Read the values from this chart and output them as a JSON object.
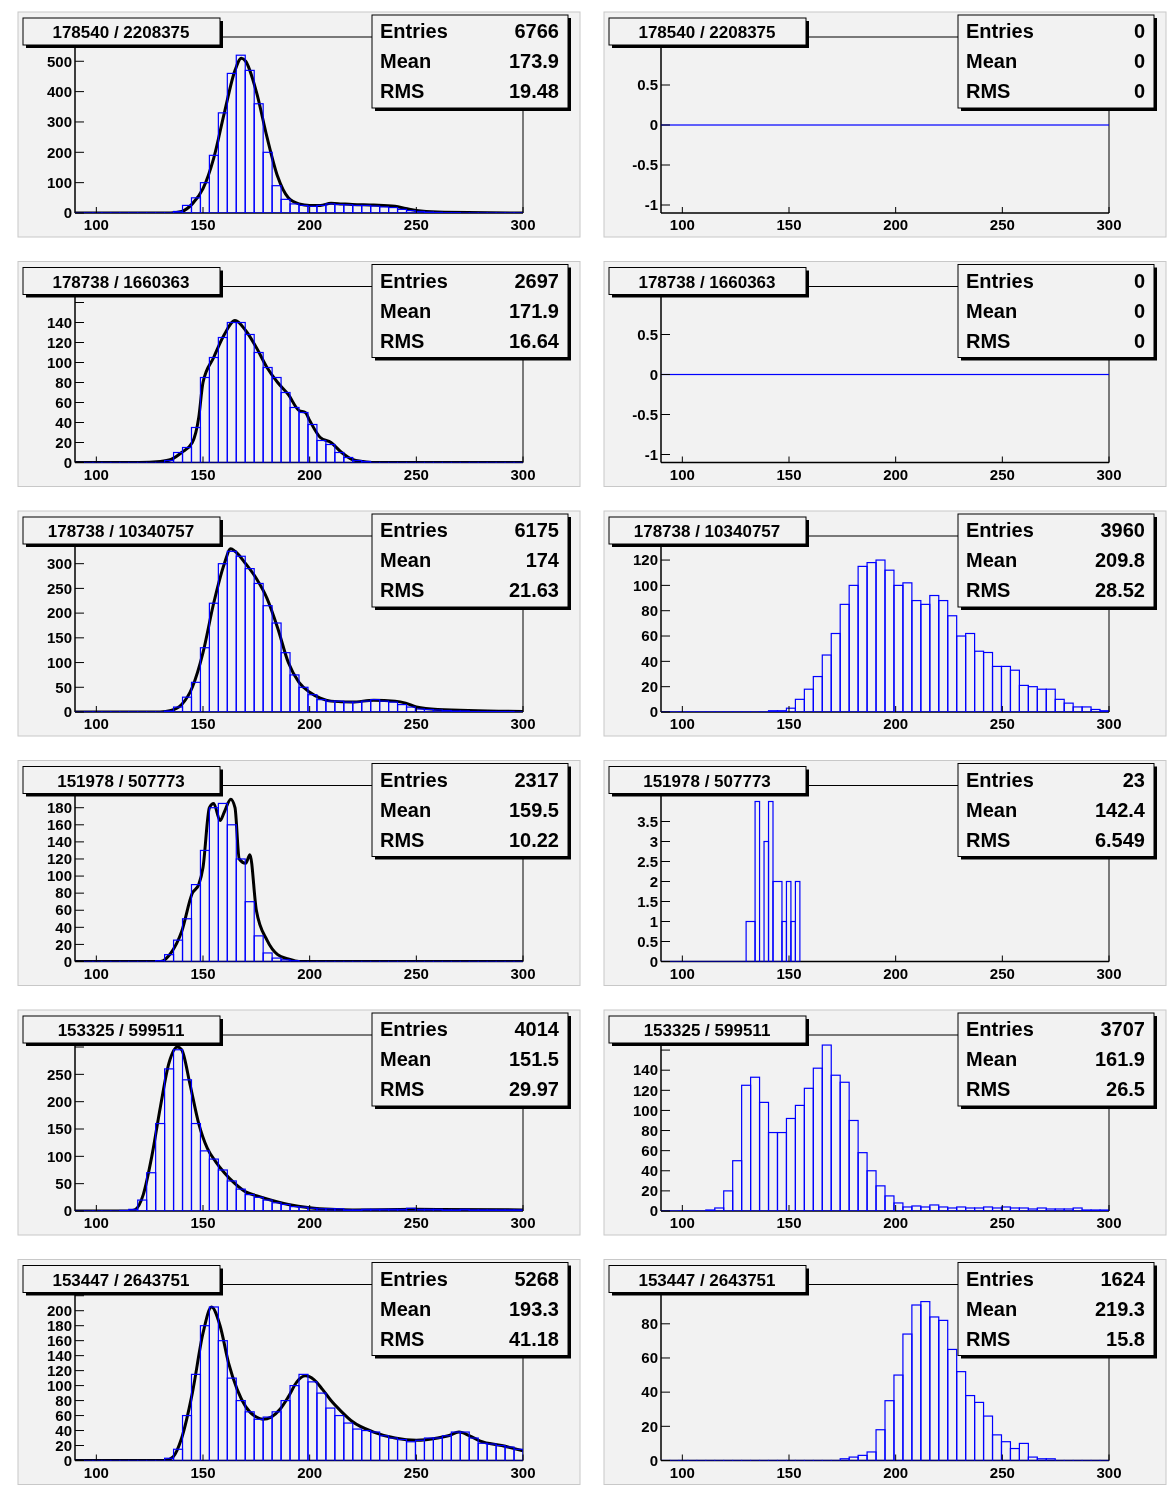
{
  "chart_data": [
    {
      "type": "histogram",
      "title": "178540 / 2208375",
      "color": "#0000ff",
      "xlim": [
        90,
        300
      ],
      "xticks": [
        100,
        150,
        200,
        250,
        300
      ],
      "ylim": [
        0,
        580
      ],
      "yticks": [
        0,
        100,
        200,
        300,
        400,
        500
      ],
      "annotations": [
        "Entries",
        "6766",
        "Mean",
        "173.9",
        "RMS",
        "19.48"
      ],
      "bins": [
        90,
        94.2,
        98.4,
        102.6,
        106.8,
        111,
        115.2,
        119.4,
        123.6,
        127.8,
        132,
        136.2,
        140.4,
        144.6,
        148.8,
        153,
        157.2,
        161.4,
        165.6,
        169.8,
        174,
        178.2,
        182.4,
        186.6,
        190.8,
        195,
        199.2,
        203.4,
        207.6,
        211.8,
        216,
        220.2,
        224.4,
        228.6,
        232.8,
        237,
        241.2,
        245.4,
        249.6,
        253.8,
        258,
        262.2,
        266.4,
        270.6,
        274.8,
        279,
        283.2,
        287.4,
        291.6,
        295.8,
        300
      ],
      "values": [
        0,
        0,
        0,
        0,
        0,
        0,
        0,
        0,
        0,
        0,
        0,
        5,
        25,
        50,
        100,
        190,
        330,
        460,
        520,
        470,
        360,
        200,
        90,
        45,
        30,
        25,
        22,
        25,
        30,
        28,
        27,
        25,
        25,
        23,
        20,
        18,
        12,
        8,
        5,
        3,
        2,
        1,
        1,
        0,
        0,
        0,
        0,
        0,
        0,
        0
      ],
      "series": [
        {
          "type": "line",
          "color": "#000000",
          "x": [
            90,
            135,
            140,
            145,
            150,
            155,
            160,
            165,
            168,
            170,
            175,
            180,
            185,
            190,
            195,
            200,
            205,
            210,
            215,
            220,
            230,
            240,
            245,
            250,
            260,
            300
          ],
          "values": [
            0,
            0,
            5,
            30,
            80,
            180,
            330,
            470,
            510,
            500,
            400,
            250,
            120,
            50,
            30,
            25,
            25,
            32,
            30,
            28,
            26,
            22,
            15,
            8,
            3,
            0
          ]
        }
      ]
    },
    {
      "type": "histogram",
      "title": "178540 / 2208375",
      "color": "#0000ff",
      "xlim": [
        90,
        300
      ],
      "xticks": [
        100,
        150,
        200,
        250,
        300
      ],
      "ylim": [
        -1.1,
        1.1
      ],
      "yticks": [
        -1,
        -0.5,
        0,
        0.5
      ],
      "annotations": [
        "Entries",
        "0",
        "Mean",
        "0",
        "RMS",
        "0"
      ],
      "bins": [
        90,
        300
      ],
      "values": [
        0
      ]
    },
    {
      "type": "histogram",
      "title": "178738 / 1660363",
      "color": "#0000ff",
      "xlim": [
        90,
        300
      ],
      "xticks": [
        100,
        150,
        200,
        250,
        300
      ],
      "ylim": [
        0,
        176
      ],
      "yticks": [
        0,
        20,
        40,
        60,
        80,
        100,
        120,
        140,
        {
          "value": 160,
          "label": null
        }
      ],
      "annotations": [
        "Entries",
        "2697",
        "Mean",
        "171.9",
        "RMS",
        "16.64"
      ],
      "bins": [
        90,
        94.2,
        98.4,
        102.6,
        106.8,
        111,
        115.2,
        119.4,
        123.6,
        127.8,
        132,
        136.2,
        140.4,
        144.6,
        148.8,
        153,
        157.2,
        161.4,
        165.6,
        169.8,
        174,
        178.2,
        182.4,
        186.6,
        190.8,
        195,
        199.2,
        203.4,
        207.6,
        211.8,
        216,
        220.2,
        224.4,
        228.6,
        232.8,
        237,
        241.2,
        245.4,
        249.6,
        253.8,
        258,
        262.2,
        266.4,
        270.6,
        274.8,
        279,
        283.2,
        287.4,
        291.6,
        295.8,
        300
      ],
      "values": [
        0,
        0,
        0,
        0,
        0,
        0,
        0,
        0,
        0,
        0,
        2,
        10,
        15,
        35,
        85,
        105,
        125,
        140,
        140,
        128,
        110,
        95,
        85,
        70,
        55,
        50,
        38,
        22,
        18,
        10,
        5,
        2,
        1,
        0,
        0,
        0,
        0,
        0,
        0,
        0,
        0,
        0,
        0,
        0,
        0,
        0,
        0,
        0,
        0,
        0
      ],
      "series": [
        {
          "type": "line",
          "color": "#000000",
          "x": [
            90,
            120,
            130,
            135,
            140,
            145,
            148,
            150,
            155,
            160,
            165,
            170,
            175,
            180,
            185,
            190,
            195,
            198,
            200,
            205,
            210,
            215,
            220,
            225,
            230,
            300
          ],
          "values": [
            0,
            0,
            1,
            3,
            10,
            20,
            45,
            80,
            105,
            128,
            142,
            132,
            115,
            95,
            80,
            68,
            52,
            50,
            42,
            25,
            20,
            10,
            3,
            1,
            0,
            0
          ]
        }
      ]
    },
    {
      "type": "histogram",
      "title": "178738 / 1660363",
      "color": "#0000ff",
      "xlim": [
        90,
        300
      ],
      "xticks": [
        100,
        150,
        200,
        250,
        300
      ],
      "ylim": [
        -1.1,
        1.1
      ],
      "yticks": [
        -1,
        -0.5,
        0,
        0.5
      ],
      "annotations": [
        "Entries",
        "0",
        "Mean",
        "0",
        "RMS",
        "0"
      ],
      "bins": [
        90,
        300
      ],
      "values": [
        0
      ]
    },
    {
      "type": "histogram",
      "title": "178738 / 10340757",
      "color": "#0000ff",
      "xlim": [
        90,
        300
      ],
      "xticks": [
        100,
        150,
        200,
        250,
        300
      ],
      "ylim": [
        0,
        356
      ],
      "yticks": [
        0,
        50,
        100,
        150,
        200,
        250,
        300
      ],
      "annotations": [
        "Entries",
        "6175",
        "Mean",
        "174",
        "RMS",
        "21.63"
      ],
      "bins": [
        90,
        94.2,
        98.4,
        102.6,
        106.8,
        111,
        115.2,
        119.4,
        123.6,
        127.8,
        132,
        136.2,
        140.4,
        144.6,
        148.8,
        153,
        157.2,
        161.4,
        165.6,
        169.8,
        174,
        178.2,
        182.4,
        186.6,
        190.8,
        195,
        199.2,
        203.4,
        207.6,
        211.8,
        216,
        220.2,
        224.4,
        228.6,
        232.8,
        237,
        241.2,
        245.4,
        249.6,
        253.8,
        258,
        262.2,
        266.4,
        270.6,
        274.8,
        279,
        283.2,
        287.4,
        291.6,
        295.8,
        300
      ],
      "values": [
        0,
        0,
        0,
        0,
        0,
        0,
        0,
        0,
        0,
        0,
        2,
        10,
        30,
        60,
        130,
        220,
        300,
        325,
        315,
        290,
        260,
        215,
        180,
        120,
        75,
        50,
        35,
        25,
        22,
        22,
        20,
        20,
        22,
        25,
        22,
        20,
        15,
        10,
        6,
        5,
        4,
        3,
        2,
        2,
        1,
        1,
        1,
        1,
        1,
        0
      ],
      "series": [
        {
          "type": "line",
          "color": "#000000",
          "x": [
            90,
            130,
            135,
            140,
            145,
            150,
            155,
            160,
            163,
            165,
            170,
            175,
            180,
            185,
            190,
            195,
            200,
            205,
            210,
            220,
            230,
            240,
            245,
            250,
            260,
            300
          ],
          "values": [
            0,
            0,
            3,
            15,
            50,
            120,
            220,
            300,
            330,
            325,
            300,
            270,
            230,
            170,
            100,
            60,
            40,
            28,
            22,
            20,
            24,
            22,
            18,
            10,
            5,
            1
          ]
        }
      ]
    },
    {
      "type": "histogram",
      "title": "178738 / 10340757",
      "color": "#0000ff",
      "xlim": [
        90,
        300
      ],
      "xticks": [
        100,
        150,
        200,
        250,
        300
      ],
      "ylim": [
        0,
        139
      ],
      "yticks": [
        0,
        20,
        40,
        60,
        80,
        100,
        120
      ],
      "annotations": [
        "Entries",
        "3960",
        "Mean",
        "209.8",
        "RMS",
        "28.52"
      ],
      "bins": [
        90,
        94.2,
        98.4,
        102.6,
        106.8,
        111,
        115.2,
        119.4,
        123.6,
        127.8,
        132,
        136.2,
        140.4,
        144.6,
        148.8,
        153,
        157.2,
        161.4,
        165.6,
        169.8,
        174,
        178.2,
        182.4,
        186.6,
        190.8,
        195,
        199.2,
        203.4,
        207.6,
        211.8,
        216,
        220.2,
        224.4,
        228.6,
        232.8,
        237,
        241.2,
        245.4,
        249.6,
        253.8,
        258,
        262.2,
        266.4,
        270.6,
        274.8,
        279,
        283.2,
        287.4,
        291.6,
        295.8,
        300
      ],
      "values": [
        0,
        0,
        0,
        0,
        0,
        0,
        0,
        0,
        0,
        0,
        0,
        0,
        1,
        1,
        3,
        10,
        18,
        28,
        45,
        62,
        85,
        100,
        115,
        118,
        120,
        112,
        100,
        102,
        88,
        85,
        92,
        88,
        76,
        60,
        62,
        48,
        47,
        36,
        36,
        33,
        21,
        20,
        18,
        18,
        10,
        7,
        4,
        4,
        2,
        1
      ]
    },
    {
      "type": "histogram",
      "title": "151978 / 507773",
      "color": "#0000ff",
      "xlim": [
        90,
        300
      ],
      "xticks": [
        100,
        150,
        200,
        250,
        300
      ],
      "ylim": [
        0,
        206
      ],
      "yticks": [
        0,
        20,
        40,
        60,
        80,
        100,
        120,
        140,
        160,
        180
      ],
      "annotations": [
        "Entries",
        "2317",
        "Mean",
        "159.5",
        "RMS",
        "10.22"
      ],
      "bins": [
        90,
        94.2,
        98.4,
        102.6,
        106.8,
        111,
        115.2,
        119.4,
        123.6,
        127.8,
        132,
        136.2,
        140.4,
        144.6,
        148.8,
        153,
        157.2,
        161.4,
        165.6,
        169.8,
        174,
        178.2,
        182.4,
        186.6,
        190.8,
        195,
        199.2,
        203.4,
        207.6,
        211.8,
        216,
        220.2,
        224.4,
        228.6,
        232.8,
        237,
        241.2,
        245.4,
        249.6,
        253.8,
        258,
        262.2,
        266.4,
        270.6,
        274.8,
        279,
        283.2,
        287.4,
        291.6,
        295.8,
        300
      ],
      "values": [
        0,
        0,
        0,
        0,
        0,
        0,
        0,
        0,
        0,
        1,
        8,
        25,
        50,
        90,
        130,
        180,
        185,
        160,
        120,
        70,
        30,
        10,
        4,
        2,
        1,
        0,
        0,
        0,
        0,
        0,
        0,
        0,
        0,
        0,
        0,
        0,
        0,
        0,
        0,
        0,
        0,
        0,
        0,
        0,
        0,
        0,
        0,
        0,
        0,
        0
      ],
      "series": [
        {
          "type": "line",
          "color": "#000000",
          "x": [
            90,
            130,
            135,
            140,
            145,
            148,
            150,
            153,
            155,
            158,
            160,
            163,
            165,
            167,
            170,
            172,
            175,
            180,
            185,
            190,
            195,
            300
          ],
          "values": [
            0,
            0,
            10,
            35,
            80,
            90,
            110,
            180,
            185,
            165,
            175,
            190,
            180,
            120,
            115,
            125,
            60,
            25,
            8,
            3,
            0,
            0
          ]
        }
      ]
    },
    {
      "type": "histogram",
      "title": "151978 / 507773",
      "color": "#0000ff",
      "xlim": [
        90,
        300
      ],
      "xticks": [
        100,
        150,
        200,
        250,
        300
      ],
      "ylim": [
        0,
        4.4
      ],
      "yticks": [
        0,
        0.5,
        1,
        1.5,
        2,
        2.5,
        3,
        3.5
      ],
      "annotations": [
        "Entries",
        "23",
        "Mean",
        "142.4",
        "RMS",
        "6.549"
      ],
      "bins": [
        90,
        129.9,
        134.1,
        136.2,
        138.3,
        140.4,
        142.5,
        146.7,
        148.8,
        150.9,
        153,
        155.1
      ],
      "values": [
        0,
        1,
        4,
        0,
        3,
        4,
        2,
        1,
        2,
        1,
        2
      ]
    },
    {
      "type": "histogram",
      "title": "153325 / 599511",
      "color": "#0000ff",
      "xlim": [
        90,
        300
      ],
      "xticks": [
        100,
        150,
        200,
        250,
        300
      ],
      "ylim": [
        0,
        322
      ],
      "yticks": [
        0,
        50,
        100,
        150,
        200,
        250,
        {
          "value": 300,
          "label": null
        }
      ],
      "annotations": [
        "Entries",
        "4014",
        "Mean",
        "151.5",
        "RMS",
        "29.97"
      ],
      "bins": [
        90,
        94.2,
        98.4,
        102.6,
        106.8,
        111,
        115.2,
        119.4,
        123.6,
        127.8,
        132,
        136.2,
        140.4,
        144.6,
        148.8,
        153,
        157.2,
        161.4,
        165.6,
        169.8,
        174,
        178.2,
        182.4,
        186.6,
        190.8,
        195,
        199.2,
        203.4,
        207.6,
        211.8,
        216,
        220.2,
        224.4,
        228.6,
        232.8,
        237,
        241.2,
        245.4,
        249.6,
        253.8,
        258,
        262.2,
        266.4,
        270.6,
        274.8,
        279,
        283.2,
        287.4,
        291.6,
        295.8,
        300
      ],
      "values": [
        0,
        0,
        0,
        0,
        0,
        1,
        3,
        20,
        70,
        160,
        260,
        295,
        240,
        160,
        110,
        95,
        75,
        55,
        40,
        30,
        25,
        20,
        15,
        12,
        8,
        7,
        5,
        4,
        4,
        4,
        2,
        2,
        3,
        3,
        3,
        3,
        3,
        5,
        3,
        3,
        3,
        2,
        2,
        3,
        2,
        2,
        2,
        2,
        2,
        2
      ],
      "series": [
        {
          "type": "line",
          "color": "#000000",
          "x": [
            90,
            115,
            118,
            122,
            126,
            130,
            134,
            138,
            140,
            144,
            148,
            152,
            156,
            160,
            165,
            170,
            175,
            180,
            190,
            200,
            210,
            220,
            250,
            300
          ],
          "values": [
            0,
            0,
            2,
            30,
            100,
            190,
            270,
            300,
            295,
            230,
            160,
            115,
            90,
            70,
            50,
            35,
            28,
            22,
            12,
            6,
            3,
            2,
            3,
            2
          ]
        }
      ]
    },
    {
      "type": "histogram",
      "title": "153325 / 599511",
      "color": "#0000ff",
      "xlim": [
        90,
        300
      ],
      "xticks": [
        100,
        150,
        200,
        250,
        300
      ],
      "ylim": [
        0,
        175
      ],
      "yticks": [
        0,
        20,
        40,
        60,
        80,
        100,
        120,
        140,
        {
          "value": 160,
          "label": null
        }
      ],
      "annotations": [
        "Entries",
        "3707",
        "Mean",
        "161.9",
        "RMS",
        "26.5"
      ],
      "bins": [
        90,
        94.2,
        98.4,
        102.6,
        106.8,
        111,
        115.2,
        119.4,
        123.6,
        127.8,
        132,
        136.2,
        140.4,
        144.6,
        148.8,
        153,
        157.2,
        161.4,
        165.6,
        169.8,
        174,
        178.2,
        182.4,
        186.6,
        190.8,
        195,
        199.2,
        203.4,
        207.6,
        211.8,
        216,
        220.2,
        224.4,
        228.6,
        232.8,
        237,
        241.2,
        245.4,
        249.6,
        253.8,
        258,
        262.2,
        266.4,
        270.6,
        274.8,
        279,
        283.2,
        287.4,
        291.6,
        295.8,
        300
      ],
      "values": [
        0,
        0,
        0,
        0,
        0,
        1,
        3,
        20,
        50,
        125,
        133,
        108,
        78,
        78,
        92,
        105,
        122,
        142,
        165,
        135,
        128,
        90,
        58,
        40,
        25,
        15,
        8,
        4,
        5,
        4,
        6,
        4,
        3,
        4,
        3,
        3,
        4,
        3,
        4,
        3,
        3,
        2,
        3,
        2,
        2,
        2,
        3,
        1,
        1,
        1
      ]
    },
    {
      "type": "histogram",
      "title": "153447 / 2643751",
      "color": "#0000ff",
      "xlim": [
        90,
        300
      ],
      "xticks": [
        100,
        150,
        200,
        250,
        300
      ],
      "ylim": [
        0,
        235
      ],
      "yticks": [
        0,
        20,
        40,
        60,
        80,
        100,
        120,
        140,
        160,
        180,
        200,
        {
          "value": 220,
          "label": null
        }
      ],
      "annotations": [
        "Entries",
        "5268",
        "Mean",
        "193.3",
        "RMS",
        "41.18"
      ],
      "bins": [
        90,
        94.2,
        98.4,
        102.6,
        106.8,
        111,
        115.2,
        119.4,
        123.6,
        127.8,
        132,
        136.2,
        140.4,
        144.6,
        148.8,
        153,
        157.2,
        161.4,
        165.6,
        169.8,
        174,
        178.2,
        182.4,
        186.6,
        190.8,
        195,
        199.2,
        203.4,
        207.6,
        211.8,
        216,
        220.2,
        224.4,
        228.6,
        232.8,
        237,
        241.2,
        245.4,
        249.6,
        253.8,
        258,
        262.2,
        266.4,
        270.6,
        274.8,
        279,
        283.2,
        287.4,
        291.6,
        295.8,
        300
      ],
      "values": [
        0,
        0,
        0,
        0,
        0,
        0,
        0,
        0,
        0,
        0,
        3,
        15,
        60,
        115,
        180,
        205,
        160,
        110,
        80,
        65,
        55,
        58,
        65,
        80,
        100,
        115,
        105,
        90,
        70,
        60,
        50,
        42,
        40,
        38,
        33,
        30,
        28,
        25,
        27,
        30,
        30,
        33,
        38,
        38,
        30,
        23,
        22,
        20,
        18,
        15
      ],
      "series": [
        {
          "type": "line",
          "color": "#000000",
          "x": [
            90,
            132,
            136,
            140,
            145,
            150,
            154,
            158,
            162,
            166,
            170,
            175,
            178,
            182,
            186,
            190,
            194,
            198,
            202,
            206,
            210,
            215,
            220,
            230,
            240,
            250,
            260,
            265,
            270,
            275,
            280,
            290,
            300
          ],
          "values": [
            0,
            0,
            5,
            30,
            90,
            170,
            205,
            180,
            130,
            95,
            72,
            58,
            55,
            58,
            68,
            85,
            105,
            113,
            108,
            95,
            80,
            65,
            52,
            38,
            30,
            27,
            30,
            33,
            38,
            33,
            26,
            20,
            13
          ]
        }
      ]
    },
    {
      "type": "histogram",
      "title": "153447 / 2643751",
      "color": "#0000ff",
      "xlim": [
        90,
        300
      ],
      "xticks": [
        100,
        150,
        200,
        250,
        300
      ],
      "ylim": [
        0,
        103
      ],
      "yticks": [
        0,
        20,
        40,
        60,
        80,
        {
          "value": 100,
          "label": null
        }
      ],
      "annotations": [
        "Entries",
        "1624",
        "Mean",
        "219.3",
        "RMS",
        "15.8"
      ],
      "bins": [
        90,
        94.2,
        98.4,
        102.6,
        106.8,
        111,
        115.2,
        119.4,
        123.6,
        127.8,
        132,
        136.2,
        140.4,
        144.6,
        148.8,
        153,
        157.2,
        161.4,
        165.6,
        169.8,
        174,
        178.2,
        182.4,
        186.6,
        190.8,
        195,
        199.2,
        203.4,
        207.6,
        211.8,
        216,
        220.2,
        224.4,
        228.6,
        232.8,
        237,
        241.2,
        245.4,
        249.6,
        253.8,
        258,
        262.2,
        266.4,
        270.6,
        274.8,
        279,
        283.2,
        287.4,
        291.6,
        295.8,
        300
      ],
      "values": [
        0,
        0,
        0,
        0,
        0,
        0,
        0,
        0,
        0,
        0,
        0,
        0,
        0,
        0,
        0,
        0,
        0,
        0,
        0,
        0,
        1,
        2,
        3,
        5,
        18,
        35,
        50,
        74,
        91,
        93,
        84,
        82,
        65,
        52,
        38,
        34,
        26,
        15,
        11,
        7,
        10,
        2,
        1,
        1,
        0,
        0,
        0,
        0,
        0,
        0
      ]
    }
  ]
}
